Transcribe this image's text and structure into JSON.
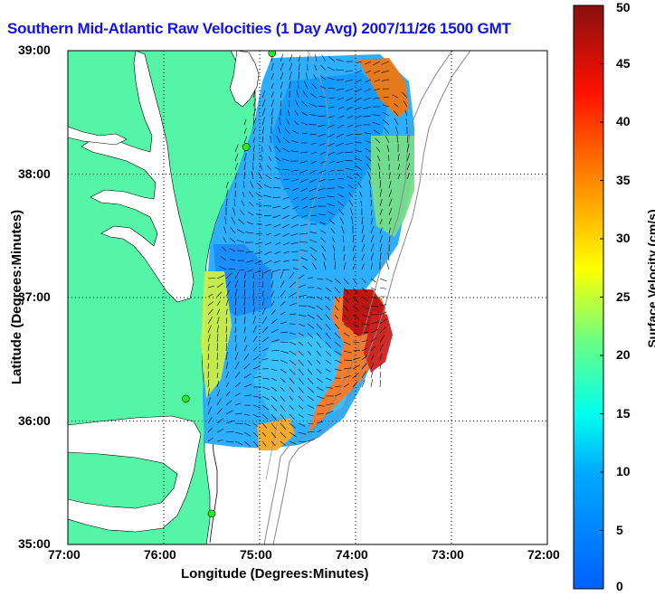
{
  "title": "Southern Mid-Atlantic Raw Velocities (1 Day Avg) 2007/11/26 1500 GMT",
  "xlabel": "Longitude (Degrees:Minutes)",
  "ylabel": "Latitude (Degrees:Minutes)",
  "colorbar": {
    "label": "Surface Velocity (cm/s)",
    "min": 0,
    "max": 50,
    "ticks": [
      "0",
      "5",
      "10",
      "15",
      "20",
      "25",
      "30",
      "35",
      "40",
      "45",
      "50"
    ]
  },
  "axes": {
    "x_ticks": [
      "77:00",
      "76:00",
      "75:00",
      "74:00",
      "73:00",
      "72:00"
    ],
    "y_ticks": [
      "39:00",
      "38:00",
      "37:00",
      "36:00",
      "35:00"
    ],
    "xlim": [
      -77,
      -72
    ],
    "ylim": [
      35,
      39
    ],
    "grid": "dotted"
  },
  "colors": {
    "land": "#55f5a8",
    "ocean": "#ffffff",
    "title": "#1111ee",
    "arrows": "#000000",
    "stations": "#22ee22"
  },
  "map": {
    "stations": [
      {
        "lon": -74.87,
        "lat": 38.98
      },
      {
        "lon": -75.14,
        "lat": 38.22
      },
      {
        "lon": -75.77,
        "lat": 36.18
      },
      {
        "lon": -75.5,
        "lat": 35.25
      }
    ]
  }
}
